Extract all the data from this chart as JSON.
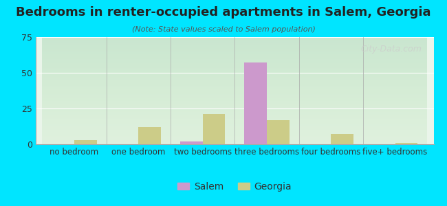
{
  "title": "Bedrooms in renter-occupied apartments in Salem, Georgia",
  "subtitle": "(Note: State values scaled to Salem population)",
  "categories": [
    "no bedroom",
    "one bedroom",
    "two bedrooms",
    "three bedrooms",
    "four bedrooms",
    "five+ bedrooms"
  ],
  "salem_values": [
    0,
    0,
    2,
    57,
    0,
    0
  ],
  "georgia_values": [
    3,
    12,
    21,
    17,
    7,
    1
  ],
  "salem_color": "#cc99cc",
  "georgia_color": "#cccc88",
  "background_outer": "#00e5ff",
  "background_inner_top": "#e8f5e8",
  "background_inner_bottom": "#f5fff5",
  "ylim": [
    0,
    75
  ],
  "yticks": [
    0,
    25,
    50,
    75
  ],
  "bar_width": 0.35,
  "legend_salem": "Salem",
  "legend_georgia": "Georgia",
  "watermark": "City-Data.com"
}
